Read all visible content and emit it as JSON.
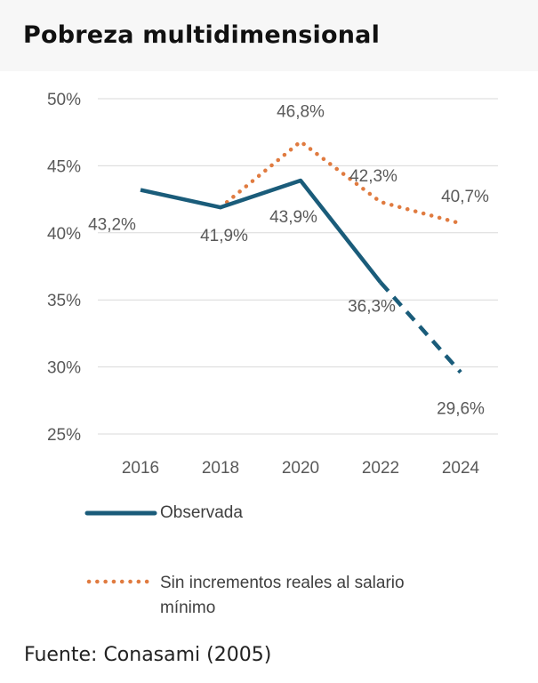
{
  "title": "Pobreza multidimensional",
  "source": "Fuente: Conasami (2005)",
  "colors": {
    "observed": "#1a5c7a",
    "scenario": "#e07b40",
    "grid": "#d9d9d9",
    "text": "#595959"
  },
  "chart_data": {
    "type": "line",
    "title": "Pobreza multidimensional",
    "xlabel": "",
    "ylabel": "",
    "x": [
      2016,
      2018,
      2020,
      2022,
      2024
    ],
    "ylim": [
      25,
      50
    ],
    "yticks": [
      "25%",
      "30%",
      "35%",
      "40%",
      "45%",
      "50%"
    ],
    "ytick_values": [
      25,
      30,
      35,
      40,
      45,
      50
    ],
    "grid": true,
    "legend_position": "bottom",
    "series": [
      {
        "name": "Observada",
        "style": "solid-then-dashed",
        "dashed_from": 2022,
        "values": [
          43.2,
          41.9,
          43.9,
          36.3,
          29.6
        ],
        "labels": [
          "43,2%",
          "41,9%",
          "43,9%",
          "36,3%",
          "29,6%"
        ]
      },
      {
        "name": "Sin incrementos reales al salario mínimo",
        "style": "dotted",
        "x": [
          2018,
          2020,
          2022,
          2024
        ],
        "values": [
          41.9,
          46.8,
          42.3,
          40.7
        ],
        "labels": [
          "46,8%",
          "42,3%",
          "40,7%"
        ]
      }
    ]
  },
  "legend": {
    "observed_label": "Observada",
    "scenario_label_line1": "Sin incrementos reales al salario",
    "scenario_label_line2": "mínimo"
  }
}
